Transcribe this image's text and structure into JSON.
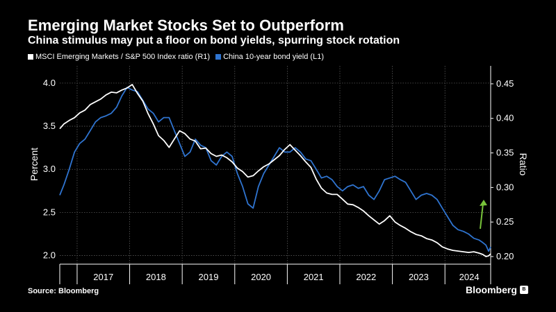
{
  "header": {
    "title": "Emerging Market Stocks Set to Outperform",
    "subtitle": "China stimulus may put a floor on bond yields, spurring stock rotation"
  },
  "footer": {
    "source": "Source: Bloomberg",
    "brand": "Bloomberg",
    "brand_mark": "B"
  },
  "colors": {
    "background": "#000000",
    "ratio_series": "#ffffff",
    "yield_series": "#2f74d0",
    "arrow": "#78c43a",
    "grid": "#5a5a5a"
  },
  "chart_data": {
    "type": "line",
    "title": "Emerging Market Stocks Set to Outperform",
    "subtitle": "China stimulus may put a floor on bond yields, spurring stock rotation",
    "xlabel": "",
    "ylabel_left": "Percent",
    "ylabel_right": "Ratio",
    "y_left_ticks": [
      2.0,
      2.5,
      3.0,
      3.5,
      4.0
    ],
    "y_left_tick_labels": [
      "2.0",
      "2.5",
      "3.0",
      "3.5",
      "4.0"
    ],
    "ylim_left": [
      1.9,
      4.2
    ],
    "y_right_ticks": [
      0.2,
      0.25,
      0.3,
      0.35,
      0.4,
      0.45
    ],
    "y_right_tick_labels": [
      "0.20",
      "0.25",
      "0.30",
      "0.35",
      "0.40",
      "0.45"
    ],
    "ylim_right": [
      0.189,
      0.476
    ],
    "xlim": [
      2016.67,
      2024.87
    ],
    "x_year_labels": [
      "2017",
      "2018",
      "2019",
      "2020",
      "2021",
      "2022",
      "2023",
      "2024"
    ],
    "grid": true,
    "legend": "top-left",
    "annotation": "green upward arrow near latest data",
    "series": [
      {
        "name": "MSCI Emerging Markets / S&P 500 Index ratio (R1)",
        "axis": "right",
        "x": [
          2016.67,
          2016.75,
          2016.85,
          2016.95,
          2017.05,
          2017.15,
          2017.25,
          2017.35,
          2017.45,
          2017.55,
          2017.65,
          2017.75,
          2017.85,
          2017.95,
          2018.05,
          2018.15,
          2018.25,
          2018.35,
          2018.45,
          2018.55,
          2018.65,
          2018.75,
          2018.85,
          2018.95,
          2019.05,
          2019.15,
          2019.25,
          2019.35,
          2019.45,
          2019.55,
          2019.65,
          2019.75,
          2019.85,
          2019.95,
          2020.05,
          2020.15,
          2020.25,
          2020.35,
          2020.45,
          2020.55,
          2020.65,
          2020.75,
          2020.85,
          2020.95,
          2021.05,
          2021.15,
          2021.25,
          2021.35,
          2021.45,
          2021.55,
          2021.65,
          2021.75,
          2021.85,
          2021.95,
          2022.05,
          2022.15,
          2022.25,
          2022.35,
          2022.45,
          2022.55,
          2022.65,
          2022.75,
          2022.85,
          2022.95,
          2023.05,
          2023.15,
          2023.25,
          2023.35,
          2023.45,
          2023.55,
          2023.65,
          2023.75,
          2023.85,
          2023.95,
          2024.05,
          2024.15,
          2024.25,
          2024.35,
          2024.45,
          2024.55,
          2024.65,
          2024.72,
          2024.78,
          2024.83,
          2024.87
        ],
        "values": [
          0.385,
          0.392,
          0.397,
          0.401,
          0.408,
          0.412,
          0.42,
          0.424,
          0.428,
          0.434,
          0.438,
          0.437,
          0.441,
          0.444,
          0.449,
          0.436,
          0.425,
          0.407,
          0.392,
          0.375,
          0.368,
          0.358,
          0.37,
          0.382,
          0.378,
          0.37,
          0.367,
          0.356,
          0.357,
          0.349,
          0.345,
          0.347,
          0.343,
          0.337,
          0.328,
          0.323,
          0.315,
          0.317,
          0.324,
          0.33,
          0.334,
          0.34,
          0.346,
          0.355,
          0.362,
          0.354,
          0.346,
          0.337,
          0.329,
          0.312,
          0.299,
          0.292,
          0.29,
          0.29,
          0.283,
          0.276,
          0.275,
          0.271,
          0.266,
          0.259,
          0.253,
          0.247,
          0.252,
          0.259,
          0.25,
          0.245,
          0.241,
          0.236,
          0.232,
          0.23,
          0.226,
          0.224,
          0.22,
          0.214,
          0.211,
          0.209,
          0.208,
          0.207,
          0.206,
          0.207,
          0.205,
          0.203,
          0.2,
          0.201,
          0.204
        ]
      },
      {
        "name": "China 10-year bond yield (L1)",
        "axis": "left",
        "x": [
          2016.67,
          2016.75,
          2016.85,
          2016.95,
          2017.05,
          2017.15,
          2017.25,
          2017.35,
          2017.45,
          2017.55,
          2017.65,
          2017.75,
          2017.85,
          2017.95,
          2018.05,
          2018.15,
          2018.25,
          2018.35,
          2018.45,
          2018.55,
          2018.65,
          2018.75,
          2018.85,
          2018.95,
          2019.05,
          2019.15,
          2019.25,
          2019.35,
          2019.45,
          2019.55,
          2019.65,
          2019.75,
          2019.85,
          2019.95,
          2020.05,
          2020.15,
          2020.25,
          2020.35,
          2020.45,
          2020.55,
          2020.65,
          2020.75,
          2020.85,
          2020.95,
          2021.05,
          2021.15,
          2021.25,
          2021.35,
          2021.45,
          2021.55,
          2021.65,
          2021.75,
          2021.85,
          2021.95,
          2022.05,
          2022.15,
          2022.25,
          2022.35,
          2022.45,
          2022.55,
          2022.65,
          2022.75,
          2022.85,
          2022.95,
          2023.05,
          2023.15,
          2023.25,
          2023.35,
          2023.45,
          2023.55,
          2023.65,
          2023.75,
          2023.85,
          2023.95,
          2024.05,
          2024.15,
          2024.25,
          2024.35,
          2024.45,
          2024.55,
          2024.65,
          2024.72,
          2024.78,
          2024.83,
          2024.87
        ],
        "values": [
          2.7,
          2.82,
          3.0,
          3.2,
          3.3,
          3.35,
          3.45,
          3.55,
          3.6,
          3.62,
          3.65,
          3.72,
          3.85,
          3.95,
          3.92,
          3.9,
          3.8,
          3.7,
          3.65,
          3.55,
          3.6,
          3.6,
          3.45,
          3.3,
          3.15,
          3.2,
          3.35,
          3.28,
          3.25,
          3.1,
          3.05,
          3.15,
          3.2,
          3.15,
          2.95,
          2.8,
          2.6,
          2.55,
          2.8,
          2.95,
          3.05,
          3.15,
          3.25,
          3.2,
          3.2,
          3.25,
          3.2,
          3.12,
          3.1,
          3.0,
          2.9,
          2.92,
          2.88,
          2.8,
          2.75,
          2.8,
          2.82,
          2.78,
          2.8,
          2.7,
          2.65,
          2.75,
          2.88,
          2.9,
          2.92,
          2.88,
          2.85,
          2.75,
          2.65,
          2.7,
          2.72,
          2.7,
          2.65,
          2.55,
          2.45,
          2.35,
          2.3,
          2.28,
          2.25,
          2.2,
          2.18,
          2.15,
          2.12,
          2.05,
          2.1
        ]
      }
    ]
  }
}
